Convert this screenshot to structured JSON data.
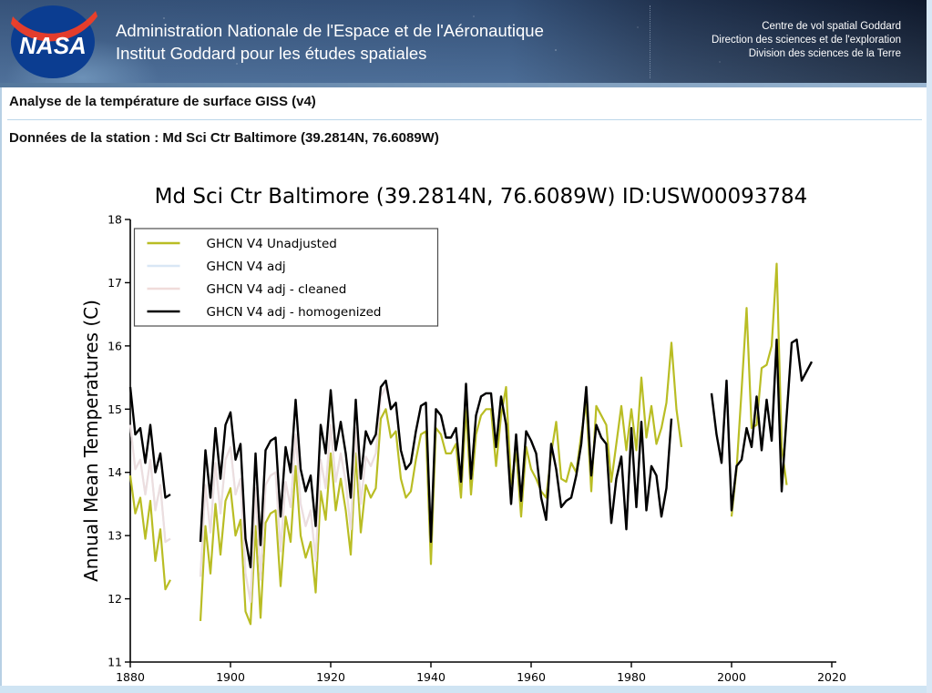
{
  "header": {
    "agency_line1": "Administration Nationale de l'Espace et de l'Aéronautique",
    "agency_line2": "Institut Goddard pour les études spatiales",
    "org_line1": "Centre de vol spatial Goddard",
    "org_line2": "Direction des sciences et de l'exploration",
    "org_line3": "Division des sciences de la Terre",
    "logo_text": "NASA"
  },
  "page": {
    "title": "Analyse de la température de surface GISS (v4)",
    "station_line": "Données de la station : Md Sci Ctr Baltimore (39.2814N, 76.6089W)"
  },
  "colors": {
    "banner_left": "#41608a",
    "banner_right": "#0d1322",
    "title_rule": "#bcd6ea",
    "footer_bar": "#cfe4f3",
    "logo_blue": "#0b3d91",
    "logo_red": "#fc3d21"
  },
  "chart_data": {
    "type": "line",
    "title": "Md Sci Ctr Baltimore (39.2814N, 76.6089W) ID:USW00093784",
    "xlabel": "",
    "ylabel": "Annual Mean Temperatures (C)",
    "xlim": [
      1880,
      2020
    ],
    "ylim": [
      11,
      18
    ],
    "xticks": [
      1880,
      1900,
      1920,
      1940,
      1960,
      1980,
      2000,
      2020
    ],
    "yticks": [
      11,
      12,
      13,
      14,
      15,
      16,
      17,
      18
    ],
    "grid": false,
    "legend_position": "upper left",
    "year_start": 1880,
    "year_end": 2016,
    "year_step": 1,
    "data_gaps": [
      [
        1889,
        1893
      ],
      [
        1989,
        1995
      ]
    ],
    "series": [
      {
        "name": "GHCN V4 Unadjusted",
        "color": "#b9bd24",
        "values": [
          13.95,
          13.35,
          13.6,
          12.95,
          13.55,
          12.6,
          13.1,
          12.15,
          12.3,
          null,
          null,
          null,
          null,
          null,
          11.65,
          13.15,
          12.4,
          13.5,
          12.7,
          13.55,
          13.75,
          13.0,
          13.25,
          11.8,
          11.6,
          13.15,
          11.7,
          13.2,
          13.35,
          13.4,
          12.2,
          13.3,
          12.9,
          14.1,
          13.0,
          12.65,
          12.9,
          12.1,
          13.7,
          13.25,
          14.3,
          13.4,
          13.9,
          13.4,
          12.7,
          14.3,
          13.05,
          13.8,
          13.6,
          13.75,
          14.85,
          15.0,
          14.55,
          14.65,
          13.9,
          13.6,
          13.7,
          14.2,
          14.6,
          14.65,
          12.55,
          14.7,
          14.6,
          14.3,
          14.3,
          14.45,
          13.6,
          15.0,
          13.65,
          14.6,
          14.9,
          15.0,
          15.0,
          14.1,
          14.9,
          15.35,
          13.8,
          14.35,
          13.3,
          14.4,
          14.05,
          13.9,
          13.7,
          13.6,
          14.3,
          14.8,
          13.9,
          13.85,
          14.15,
          14.0,
          14.6,
          15.1,
          13.7,
          15.05,
          14.9,
          14.75,
          13.85,
          14.45,
          15.05,
          14.35,
          15.0,
          14.35,
          15.5,
          14.55,
          15.05,
          14.45,
          14.7,
          15.1,
          16.05,
          15.0,
          14.4,
          null,
          null,
          null,
          null,
          null,
          null,
          null,
          null,
          null,
          13.3,
          14.05,
          15.3,
          16.6,
          14.7,
          14.75,
          15.65,
          15.7,
          16.0,
          17.3,
          14.4,
          13.8,
          null,
          null,
          null,
          null,
          null
        ]
      },
      {
        "name": "GHCN V4 adj",
        "color": "#d9e7f5",
        "values": [
          14.75,
          14.05,
          14.2,
          13.65,
          14.2,
          13.4,
          13.8,
          12.9,
          12.95,
          null,
          null,
          null,
          null,
          null,
          12.35,
          13.8,
          13.05,
          14.15,
          13.35,
          14.2,
          14.4,
          13.65,
          13.9,
          12.4,
          11.95,
          13.75,
          12.3,
          13.8,
          13.95,
          14.0,
          12.75,
          13.85,
          13.45,
          14.6,
          13.5,
          13.15,
          13.4,
          12.6,
          14.2,
          13.75,
          14.75,
          13.85,
          14.3,
          13.85,
          13.1,
          14.7,
          13.5,
          14.25,
          14.1,
          14.3,
          15.2,
          15.35,
          15.0,
          15.1,
          14.35,
          14.05,
          14.15,
          14.65,
          15.05,
          15.1,
          12.9,
          15.0,
          14.9,
          14.55,
          14.55,
          14.7,
          13.85,
          15.4,
          13.9,
          14.9,
          15.2,
          15.25,
          15.25,
          14.4,
          15.2,
          14.75,
          13.5,
          14.6,
          13.55,
          14.65,
          14.5,
          14.3,
          13.6,
          13.25,
          14.45,
          14.05,
          13.45,
          13.55,
          13.6,
          13.95,
          14.45,
          15.35,
          13.95,
          14.75,
          14.55,
          14.45,
          13.2,
          13.9,
          14.25,
          13.1,
          14.7,
          13.45,
          14.8,
          13.4,
          14.1,
          13.95,
          13.3,
          13.75,
          14.85,
          null,
          null,
          null,
          null,
          null,
          null,
          null,
          15.25,
          14.6,
          14.15,
          15.45,
          13.4,
          14.1,
          14.2,
          14.7,
          14.4,
          15.2,
          14.35,
          15.15,
          14.5,
          16.1,
          13.7,
          14.9,
          16.05,
          16.1,
          15.45,
          15.6,
          15.75
        ]
      },
      {
        "name": "GHCN V4 adj - cleaned",
        "color": "#f0dcda",
        "values": [
          14.75,
          14.05,
          14.2,
          13.65,
          14.2,
          13.4,
          13.8,
          12.9,
          12.95,
          null,
          null,
          null,
          null,
          null,
          12.35,
          13.8,
          13.05,
          14.15,
          13.35,
          14.2,
          14.4,
          13.65,
          13.9,
          12.4,
          11.95,
          13.75,
          12.3,
          13.8,
          13.95,
          14.0,
          12.75,
          13.85,
          13.45,
          14.6,
          13.5,
          13.15,
          13.4,
          12.6,
          14.2,
          13.75,
          14.75,
          13.85,
          14.3,
          13.85,
          13.1,
          14.7,
          13.5,
          14.25,
          14.1,
          14.3,
          15.2,
          15.35,
          15.0,
          15.1,
          14.35,
          14.05,
          14.15,
          14.65,
          15.05,
          15.1,
          12.9,
          15.0,
          14.9,
          14.55,
          14.55,
          14.7,
          13.85,
          15.4,
          13.9,
          14.9,
          15.2,
          15.25,
          15.25,
          14.4,
          15.2,
          14.75,
          13.5,
          14.6,
          13.55,
          14.65,
          14.5,
          14.3,
          13.6,
          13.25,
          14.45,
          14.05,
          13.45,
          13.55,
          13.6,
          13.95,
          14.45,
          15.35,
          13.95,
          14.75,
          14.55,
          14.45,
          13.2,
          13.9,
          14.25,
          13.1,
          14.7,
          13.45,
          14.8,
          13.4,
          14.1,
          13.95,
          13.3,
          13.75,
          14.85,
          null,
          null,
          null,
          null,
          null,
          null,
          null,
          15.25,
          14.6,
          14.15,
          15.45,
          13.4,
          14.1,
          14.2,
          14.7,
          14.4,
          15.2,
          14.35,
          15.15,
          14.5,
          16.1,
          13.7,
          14.9,
          16.05,
          16.1,
          15.45,
          15.6,
          15.75
        ]
      },
      {
        "name": "GHCN V4 adj - homogenized",
        "color": "#000000",
        "values": [
          15.35,
          14.6,
          14.7,
          14.15,
          14.75,
          14.0,
          14.3,
          13.6,
          13.65,
          null,
          null,
          null,
          null,
          null,
          12.9,
          14.35,
          13.6,
          14.7,
          13.9,
          14.75,
          14.95,
          14.2,
          14.45,
          12.95,
          12.5,
          14.3,
          12.85,
          14.35,
          14.5,
          14.55,
          13.3,
          14.4,
          14.0,
          15.15,
          14.05,
          13.7,
          13.95,
          13.15,
          14.75,
          14.3,
          15.3,
          14.35,
          14.8,
          14.3,
          13.6,
          15.15,
          13.9,
          14.65,
          14.45,
          14.6,
          15.35,
          15.45,
          15.0,
          15.1,
          14.35,
          14.05,
          14.15,
          14.65,
          15.05,
          15.1,
          12.9,
          15.0,
          14.9,
          14.55,
          14.55,
          14.7,
          13.85,
          15.4,
          13.9,
          14.9,
          15.2,
          15.25,
          15.25,
          14.4,
          15.2,
          14.75,
          13.5,
          14.6,
          13.55,
          14.65,
          14.5,
          14.3,
          13.6,
          13.25,
          14.45,
          14.05,
          13.45,
          13.55,
          13.6,
          13.95,
          14.45,
          15.35,
          13.95,
          14.75,
          14.55,
          14.45,
          13.2,
          13.9,
          14.25,
          13.1,
          14.7,
          13.45,
          14.8,
          13.4,
          14.1,
          13.95,
          13.3,
          13.75,
          14.85,
          null,
          null,
          null,
          null,
          null,
          null,
          null,
          15.25,
          14.6,
          14.15,
          15.45,
          13.4,
          14.1,
          14.2,
          14.7,
          14.4,
          15.2,
          14.35,
          15.15,
          14.5,
          16.1,
          13.7,
          14.9,
          16.05,
          16.1,
          15.45,
          15.6,
          15.75
        ]
      }
    ]
  }
}
